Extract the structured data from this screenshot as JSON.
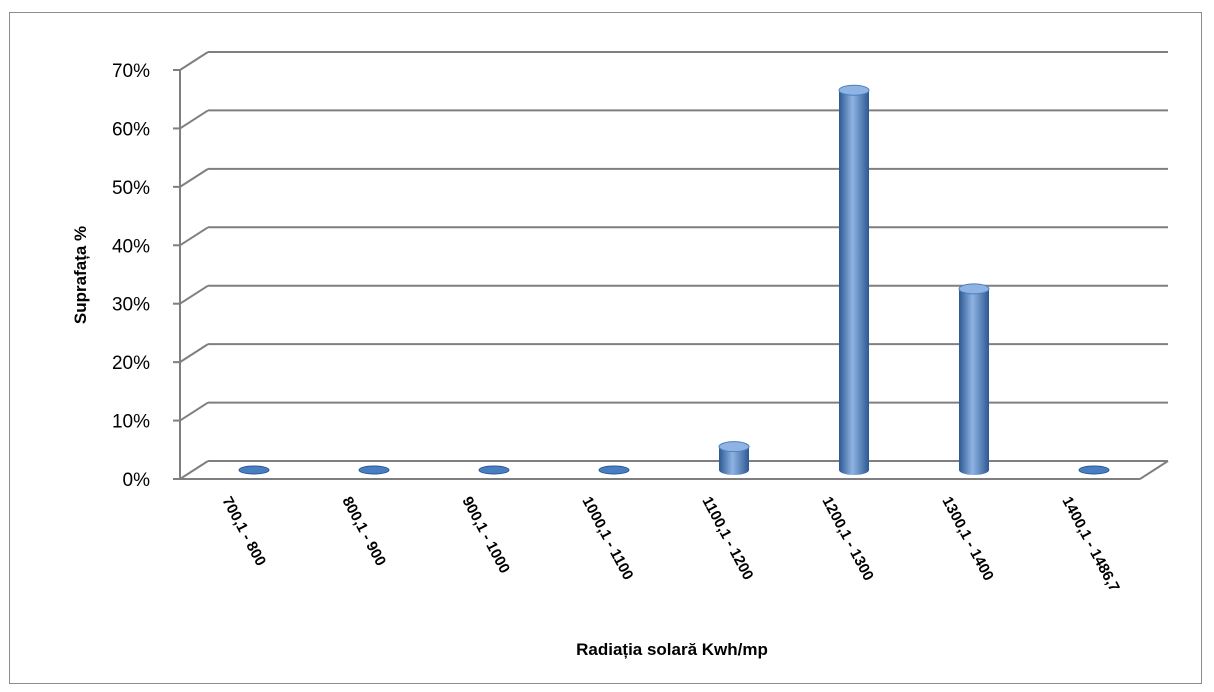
{
  "chart_data": {
    "type": "bar",
    "title": "",
    "xlabel": "Radiația solară Kwh/mp",
    "ylabel": "Suprafața %",
    "categories": [
      "700,1 - 800",
      "800,1 - 900",
      "900,1 - 1000",
      "1000,1 - 1100",
      "1100,1 - 1200",
      "1200,1 - 1300",
      "1300,1 - 1400",
      "1400,1 - 1486,7"
    ],
    "values": [
      0,
      0,
      0,
      0,
      4,
      65,
      31,
      0
    ],
    "value_unit": "%",
    "ylim": [
      0,
      70
    ],
    "yticks": [
      "0%",
      "10%",
      "20%",
      "30%",
      "40%",
      "50%",
      "60%",
      "70%"
    ],
    "ytick_values": [
      0,
      10,
      20,
      30,
      40,
      50,
      60,
      70
    ],
    "grid": true,
    "legend": "none",
    "style": "3d-cylinder",
    "bar_color": "#4a7ec2",
    "bar_color_dark": "#2c5892",
    "bar_color_light": "#8fb4e3"
  }
}
